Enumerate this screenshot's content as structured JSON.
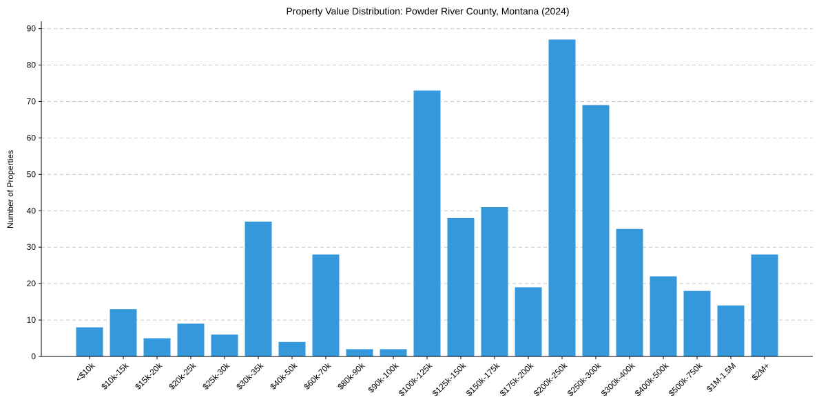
{
  "chart_data": {
    "type": "bar",
    "title": "Property Value Distribution: Powder River County, Montana (2024)",
    "xlabel": "",
    "ylabel": "Number of Properties",
    "ylim": [
      0,
      92
    ],
    "yticks": [
      0,
      10,
      20,
      30,
      40,
      50,
      60,
      70,
      80,
      90
    ],
    "grid": true,
    "bar_color": "#3498db",
    "categories": [
      "<$10k",
      "$10k-15k",
      "$15k-20k",
      "$20k-25k",
      "$25k-30k",
      "$30k-35k",
      "$40k-50k",
      "$60k-70k",
      "$80k-90k",
      "$90k-100k",
      "$100k-125k",
      "$125k-150k",
      "$150k-175k",
      "$175k-200k",
      "$200k-250k",
      "$250k-300k",
      "$300k-400k",
      "$400k-500k",
      "$500k-750k",
      "$1M-1.5M",
      "$2M+"
    ],
    "values": [
      8,
      13,
      5,
      9,
      6,
      37,
      4,
      28,
      2,
      2,
      73,
      38,
      41,
      19,
      87,
      69,
      35,
      22,
      18,
      14,
      28
    ]
  }
}
